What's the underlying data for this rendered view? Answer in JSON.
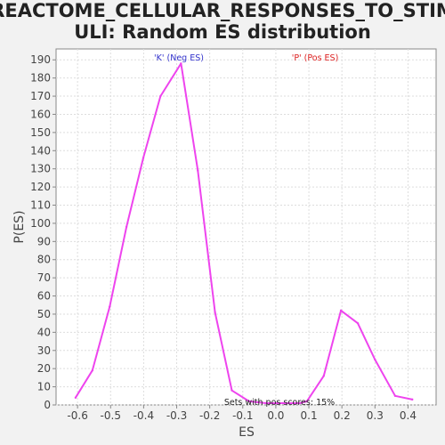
{
  "chart_data": {
    "type": "line",
    "title_lines": [
      "REACTOME_CELLULAR_RESPONSES_TO_STIM",
      "ULI: Random ES distribution"
    ],
    "xlabel": "ES",
    "ylabel": "P(ES)",
    "xlim": [
      -0.665,
      0.485
    ],
    "ylim": [
      0,
      196
    ],
    "x_ticks": [
      -0.6,
      -0.5,
      -0.4,
      -0.3,
      -0.2,
      -0.1,
      0.0,
      0.1,
      0.2,
      0.3,
      0.4
    ],
    "x_tick_labels": [
      "-0.6",
      "-0.5",
      "-0.4",
      "-0.3",
      "-0.2",
      "-0.1",
      "0.0",
      "0.1",
      "0.2",
      "0.3",
      "0.4"
    ],
    "y_ticks": [
      0,
      10,
      20,
      30,
      40,
      50,
      60,
      70,
      80,
      90,
      100,
      110,
      120,
      130,
      140,
      150,
      160,
      170,
      180,
      190
    ],
    "y_tick_labels": [
      "0",
      "10",
      "20",
      "30",
      "40",
      "50",
      "60",
      "70",
      "80",
      "90",
      "100",
      "110",
      "120",
      "130",
      "140",
      "150",
      "160",
      "170",
      "180",
      "190"
    ],
    "grid": true,
    "series": [
      {
        "color": "#ee44ee",
        "x": [
          -0.606,
          -0.555,
          -0.503,
          -0.452,
          -0.401,
          -0.349,
          -0.287,
          -0.236,
          -0.184,
          -0.133,
          -0.081,
          -0.03,
          0.021,
          0.073,
          0.094,
          0.145,
          0.197,
          0.248,
          0.3,
          0.361,
          0.413
        ],
        "y": [
          4,
          19,
          54,
          98,
          136,
          170,
          188,
          129,
          51,
          8,
          2,
          1,
          1,
          1,
          2,
          16,
          52,
          45,
          25,
          5,
          3
        ]
      }
    ],
    "annotations": [
      {
        "text": "'K' (Neg ES)",
        "color": "#3333cc"
      },
      {
        "text": "'P' (Pos ES)",
        "color": "#dd2222"
      },
      {
        "text": "Sets with pos scores: 15%"
      }
    ]
  }
}
